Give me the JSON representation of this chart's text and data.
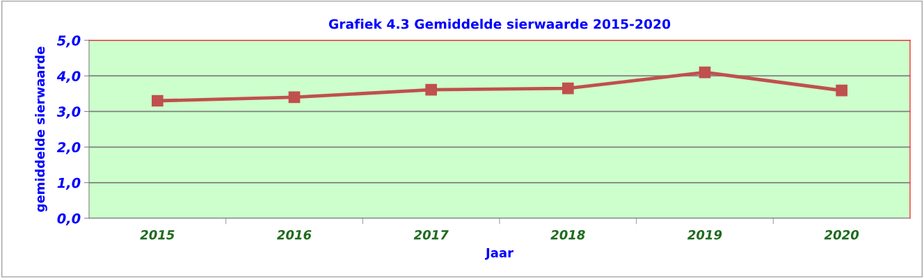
{
  "chart_data": {
    "type": "line",
    "title": "Grafiek 4.3 Gemiddelde sierwaarde 2015-2020",
    "xlabel": "Jaar",
    "ylabel": "gemiddelde sierwaarde",
    "categories": [
      "2015",
      "2016",
      "2017",
      "2018",
      "2019",
      "2020"
    ],
    "series": [
      {
        "color": "#c0504d",
        "values": [
          3.3,
          3.4,
          3.61,
          3.65,
          4.1,
          3.59
        ]
      }
    ],
    "ylim": [
      0,
      5
    ],
    "yticks": [
      {
        "value": 0,
        "label": "0,0"
      },
      {
        "value": 1,
        "label": "1,0"
      },
      {
        "value": 2,
        "label": "2,0"
      },
      {
        "value": 3,
        "label": "3,0"
      },
      {
        "value": 4,
        "label": "4,0"
      },
      {
        "value": 5,
        "label": "5,0"
      }
    ],
    "grid": "y",
    "marker": "square",
    "line_style": "solid",
    "legend": false
  }
}
